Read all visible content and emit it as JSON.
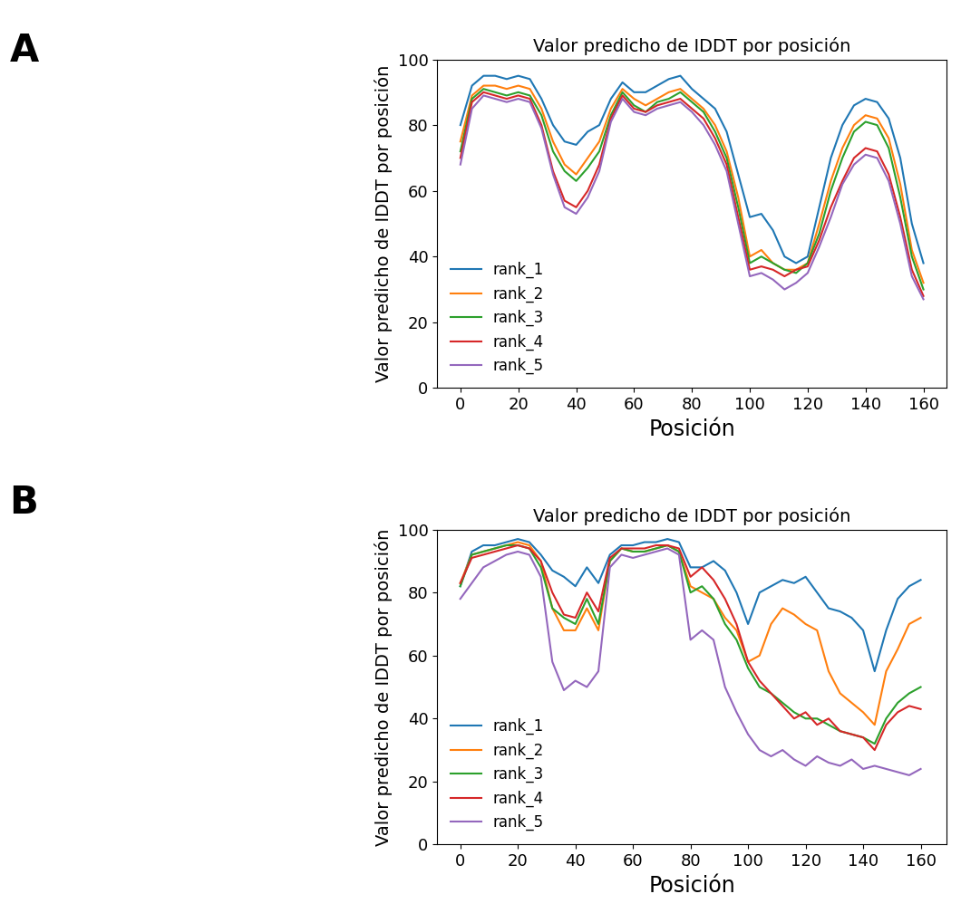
{
  "chart_data": [
    {
      "type": "line",
      "annotation": "A",
      "title": "Valor predicho de IDDT por posición",
      "x_label": "Posición",
      "y_label": "Valor predicho de IDDT por posición",
      "x": [
        0,
        4,
        8,
        12,
        16,
        20,
        24,
        28,
        32,
        36,
        40,
        44,
        48,
        52,
        56,
        60,
        64,
        68,
        72,
        76,
        80,
        84,
        88,
        92,
        96,
        100,
        104,
        108,
        112,
        116,
        120,
        124,
        128,
        132,
        136,
        140,
        144,
        148,
        152,
        156,
        160
      ],
      "series": [
        {
          "name": "rank_1",
          "color": "#1f77b4",
          "values": [
            80,
            92,
            95,
            95,
            94,
            95,
            94,
            88,
            80,
            75,
            74,
            78,
            80,
            88,
            93,
            90,
            90,
            92,
            94,
            95,
            91,
            88,
            85,
            78,
            65,
            52,
            53,
            48,
            40,
            38,
            40,
            55,
            70,
            80,
            86,
            88,
            87,
            82,
            70,
            50,
            38
          ]
        },
        {
          "name": "rank_2",
          "color": "#ff7f0e",
          "values": [
            75,
            89,
            92,
            92,
            91,
            92,
            91,
            85,
            75,
            68,
            65,
            70,
            75,
            85,
            91,
            88,
            86,
            88,
            90,
            91,
            88,
            85,
            80,
            72,
            58,
            40,
            42,
            38,
            36,
            36,
            38,
            50,
            63,
            73,
            80,
            83,
            82,
            76,
            62,
            42,
            32
          ]
        },
        {
          "name": "rank_3",
          "color": "#2ca02c",
          "values": [
            72,
            88,
            91,
            90,
            89,
            90,
            89,
            83,
            72,
            66,
            63,
            67,
            72,
            83,
            90,
            86,
            84,
            87,
            88,
            90,
            87,
            84,
            78,
            70,
            55,
            38,
            40,
            38,
            36,
            35,
            38,
            47,
            60,
            70,
            78,
            81,
            80,
            73,
            58,
            40,
            30
          ]
        },
        {
          "name": "rank_4",
          "color": "#d62728",
          "values": [
            70,
            87,
            90,
            89,
            88,
            89,
            88,
            80,
            66,
            57,
            55,
            60,
            68,
            82,
            89,
            85,
            84,
            86,
            87,
            88,
            85,
            82,
            76,
            68,
            52,
            36,
            37,
            36,
            34,
            36,
            37,
            45,
            55,
            63,
            70,
            73,
            72,
            65,
            52,
            36,
            28
          ]
        },
        {
          "name": "rank_5",
          "color": "#9467bd",
          "values": [
            68,
            85,
            89,
            88,
            87,
            88,
            87,
            79,
            65,
            55,
            53,
            58,
            66,
            81,
            88,
            84,
            83,
            85,
            86,
            87,
            84,
            80,
            74,
            66,
            50,
            34,
            35,
            33,
            30,
            32,
            35,
            43,
            52,
            62,
            68,
            71,
            70,
            63,
            50,
            34,
            27
          ]
        }
      ],
      "xlim": [
        -8,
        168
      ],
      "xticks": [
        0,
        20,
        40,
        60,
        80,
        100,
        120,
        140,
        160
      ],
      "ylim": [
        0,
        100
      ],
      "yticks": [
        0,
        20,
        40,
        60,
        80,
        100
      ],
      "legend": "lower left"
    },
    {
      "type": "line",
      "annotation": "B",
      "title": "Valor predicho de IDDT por posición",
      "x_label": "Posición",
      "y_label": "Valor predicho de IDDT por posición",
      "x": [
        0,
        4,
        8,
        12,
        16,
        20,
        24,
        28,
        32,
        36,
        40,
        44,
        48,
        52,
        56,
        60,
        64,
        68,
        72,
        76,
        80,
        84,
        88,
        92,
        96,
        100,
        104,
        108,
        112,
        116,
        120,
        124,
        128,
        132,
        136,
        140,
        144,
        148,
        152,
        156,
        160
      ],
      "series": [
        {
          "name": "rank_1",
          "color": "#1f77b4",
          "values": [
            82,
            93,
            95,
            95,
            96,
            97,
            96,
            92,
            87,
            85,
            82,
            88,
            83,
            92,
            95,
            95,
            96,
            96,
            97,
            96,
            88,
            88,
            90,
            87,
            80,
            70,
            80,
            82,
            84,
            83,
            85,
            80,
            75,
            74,
            72,
            68,
            55,
            68,
            78,
            82,
            84
          ]
        },
        {
          "name": "rank_2",
          "color": "#ff7f0e",
          "values": [
            83,
            92,
            93,
            94,
            95,
            96,
            95,
            90,
            75,
            68,
            68,
            75,
            68,
            90,
            94,
            93,
            93,
            94,
            95,
            93,
            82,
            80,
            78,
            72,
            68,
            58,
            60,
            70,
            75,
            73,
            70,
            68,
            55,
            48,
            45,
            42,
            38,
            55,
            62,
            70,
            72
          ]
        },
        {
          "name": "rank_3",
          "color": "#2ca02c",
          "values": [
            82,
            92,
            93,
            94,
            95,
            95,
            94,
            88,
            75,
            72,
            70,
            78,
            70,
            90,
            94,
            93,
            93,
            94,
            95,
            93,
            80,
            82,
            78,
            70,
            65,
            56,
            50,
            48,
            45,
            42,
            40,
            40,
            38,
            36,
            35,
            34,
            32,
            40,
            45,
            48,
            50
          ]
        },
        {
          "name": "rank_4",
          "color": "#d62728",
          "values": [
            83,
            91,
            92,
            93,
            94,
            95,
            94,
            90,
            80,
            73,
            72,
            80,
            74,
            91,
            94,
            94,
            94,
            95,
            95,
            94,
            85,
            88,
            84,
            78,
            70,
            58,
            52,
            48,
            44,
            40,
            42,
            38,
            40,
            36,
            35,
            34,
            30,
            38,
            42,
            44,
            43
          ]
        },
        {
          "name": "rank_5",
          "color": "#9467bd",
          "values": [
            78,
            83,
            88,
            90,
            92,
            93,
            92,
            85,
            58,
            49,
            52,
            50,
            55,
            88,
            92,
            91,
            92,
            93,
            94,
            92,
            65,
            68,
            65,
            50,
            42,
            35,
            30,
            28,
            30,
            27,
            25,
            28,
            26,
            25,
            27,
            24,
            25,
            24,
            23,
            22,
            24
          ]
        }
      ],
      "xlim": [
        -8,
        169
      ],
      "xticks": [
        0,
        20,
        40,
        60,
        80,
        100,
        120,
        140,
        160
      ],
      "ylim": [
        0,
        100
      ],
      "yticks": [
        0,
        20,
        40,
        60,
        80,
        100
      ],
      "legend": "lower left"
    }
  ]
}
